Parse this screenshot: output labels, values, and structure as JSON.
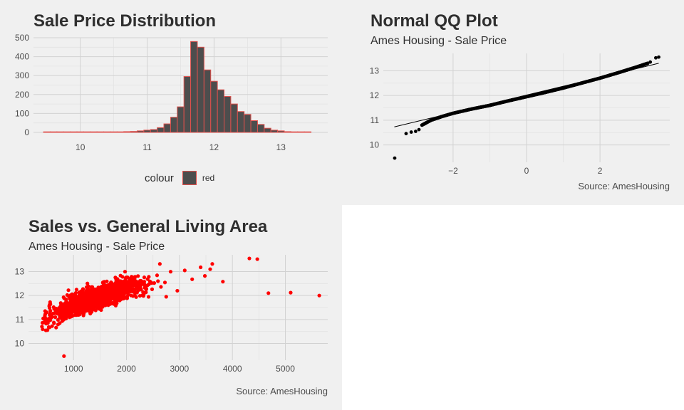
{
  "panels": {
    "histogram": {
      "title": "Sale Price Distribution",
      "legend_title": "colour",
      "legend_label": "red"
    },
    "qq": {
      "title": "Normal QQ Plot",
      "subtitle": "Ames Housing - Sale Price",
      "caption": "Source: AmesHousing"
    },
    "scatter": {
      "title": "Sales vs. General Living Area",
      "subtitle": "Ames Housing - Sale Price",
      "caption": "Source: AmesHousing"
    }
  },
  "colors": {
    "panel_bg": "#f0f0f0",
    "bar_fill": "#4d4d4d",
    "bar_outline": "#e0504c",
    "points_red": "#ff0000",
    "points_black": "#000000"
  },
  "chart_data": [
    {
      "type": "bar",
      "title": "Sale Price Distribution",
      "xlabel": "",
      "ylabel": "",
      "xlim": [
        9.3,
        13.7
      ],
      "ylim": [
        0,
        500
      ],
      "x_ticks": [
        10,
        11,
        12,
        13
      ],
      "y_ticks": [
        0,
        100,
        200,
        300,
        400,
        500
      ],
      "bin_width": 0.1,
      "bin_centers": [
        9.5,
        9.6,
        9.7,
        9.8,
        9.9,
        10.0,
        10.1,
        10.2,
        10.3,
        10.4,
        10.5,
        10.6,
        10.7,
        10.8,
        10.9,
        11.0,
        11.1,
        11.2,
        11.3,
        11.4,
        11.5,
        11.6,
        11.7,
        11.8,
        11.9,
        12.0,
        12.1,
        12.2,
        12.3,
        12.4,
        12.5,
        12.6,
        12.7,
        12.8,
        12.9,
        13.0,
        13.1,
        13.2,
        13.3,
        13.4
      ],
      "values": [
        1,
        0,
        0,
        0,
        0,
        1,
        0,
        1,
        0,
        1,
        2,
        3,
        4,
        5,
        8,
        12,
        15,
        25,
        45,
        80,
        135,
        295,
        480,
        450,
        330,
        270,
        225,
        190,
        150,
        110,
        95,
        62,
        42,
        22,
        12,
        8,
        4,
        3,
        1,
        1
      ],
      "legend": {
        "title": "colour",
        "entries": [
          "red"
        ],
        "placement": "bottom"
      },
      "grid": true
    },
    {
      "type": "scatter",
      "title": "Normal QQ Plot",
      "subtitle": "Ames Housing - Sale Price",
      "caption": "Source: AmesHousing",
      "xlim": [
        -3.9,
        3.9
      ],
      "ylim": [
        9.3,
        13.7
      ],
      "x_ticks": [
        -2,
        0,
        2
      ],
      "y_ticks": [
        10,
        11,
        12,
        13
      ],
      "reference_line": {
        "x": [
          -3.6,
          3.6
        ],
        "y": [
          10.73,
          13.3
        ]
      },
      "outliers": [
        [
          -3.59,
          9.47
        ],
        [
          -3.28,
          10.46
        ],
        [
          -3.14,
          10.52
        ],
        [
          -3.02,
          10.55
        ],
        [
          -2.93,
          10.62
        ],
        [
          3.37,
          13.35
        ],
        [
          3.52,
          13.52
        ],
        [
          3.6,
          13.55
        ]
      ],
      "quantile_curve": [
        [
          -2.85,
          10.8
        ],
        [
          -2.6,
          11.0
        ],
        [
          -2.3,
          11.15
        ],
        [
          -2.0,
          11.28
        ],
        [
          -1.5,
          11.45
        ],
        [
          -1.0,
          11.6
        ],
        [
          -0.5,
          11.78
        ],
        [
          0.0,
          11.95
        ],
        [
          0.5,
          12.12
        ],
        [
          1.0,
          12.3
        ],
        [
          1.5,
          12.5
        ],
        [
          2.0,
          12.7
        ],
        [
          2.5,
          12.92
        ],
        [
          3.0,
          13.15
        ],
        [
          3.3,
          13.3
        ]
      ],
      "grid": true
    },
    {
      "type": "scatter",
      "title": "Sales vs. General Living Area",
      "subtitle": "Ames Housing - Sale Price",
      "caption": "Source: AmesHousing",
      "xlim": [
        150,
        5800
      ],
      "ylim": [
        9.3,
        13.7
      ],
      "x_ticks": [
        1000,
        2000,
        3000,
        4000,
        5000
      ],
      "y_ticks": [
        10,
        11,
        12,
        13
      ],
      "trend": {
        "x": [
          400,
          1000,
          1500,
          2000,
          2500,
          2900
        ],
        "y": [
          10.9,
          11.6,
          11.95,
          12.3,
          12.55,
          12.7
        ],
        "spread": 0.22
      },
      "outliers": [
        [
          820,
          9.47
        ],
        [
          4320,
          13.55
        ],
        [
          4470,
          13.52
        ],
        [
          4680,
          12.1
        ],
        [
          5100,
          12.12
        ],
        [
          5640,
          12.0
        ],
        [
          3620,
          13.32
        ],
        [
          3820,
          12.58
        ],
        [
          3480,
          12.82
        ],
        [
          3580,
          13.1
        ],
        [
          3400,
          13.18
        ],
        [
          3240,
          12.68
        ],
        [
          3100,
          13.05
        ],
        [
          2960,
          12.2
        ],
        [
          2750,
          11.95
        ],
        [
          2630,
          13.32
        ]
      ],
      "grid": true
    }
  ]
}
